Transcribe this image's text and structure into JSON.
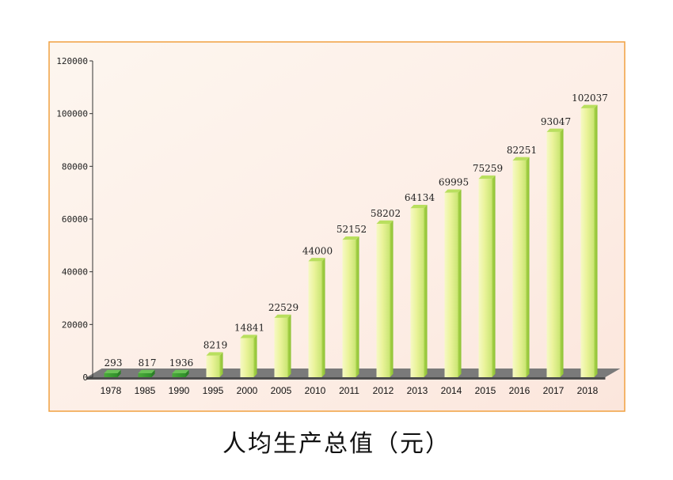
{
  "chart_data": {
    "type": "bar",
    "title": "人均生产总值（元）",
    "xlabel": "",
    "ylabel": "",
    "categories": [
      "1978",
      "1985",
      "1990",
      "1995",
      "2000",
      "2005",
      "2010",
      "2011",
      "2012",
      "2013",
      "2014",
      "2015",
      "2016",
      "2017",
      "2018"
    ],
    "values": [
      293,
      817,
      1936,
      8219,
      14841,
      22529,
      44000,
      52152,
      58202,
      64134,
      69995,
      75259,
      82251,
      93047,
      102037
    ],
    "ylim": [
      0,
      120000
    ],
    "yticks": [
      "0",
      "20000",
      "40000",
      "60000",
      "80000",
      "100000",
      "120000"
    ],
    "bar_style": "3d",
    "grid": false,
    "colors": {
      "frame": "#f0a040",
      "background": "#fdf1e9",
      "bar_front": "#e6f08e",
      "bar_side": "#9ccd3e",
      "bar_top": "#b9df5e",
      "floor": "#6e6e6e"
    }
  }
}
